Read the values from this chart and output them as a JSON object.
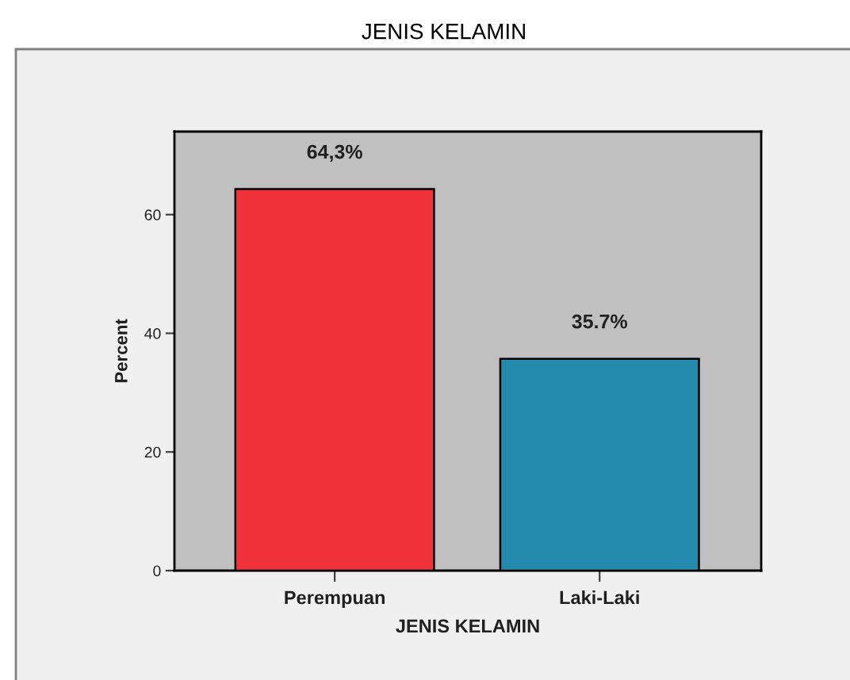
{
  "chart_data": {
    "type": "bar",
    "title": "JENIS KELAMIN",
    "xlabel": "JENIS KELAMIN",
    "ylabel": "Percent",
    "categories": [
      "Perempuan",
      "Laki-Laki"
    ],
    "values": [
      64.3,
      35.7
    ],
    "colors": [
      "#f0323a",
      "#248aad"
    ],
    "value_labels": [
      "64,3%",
      "35.7%"
    ],
    "ylim": [
      0,
      74
    ],
    "yticks": [
      0,
      20,
      40,
      60
    ]
  }
}
